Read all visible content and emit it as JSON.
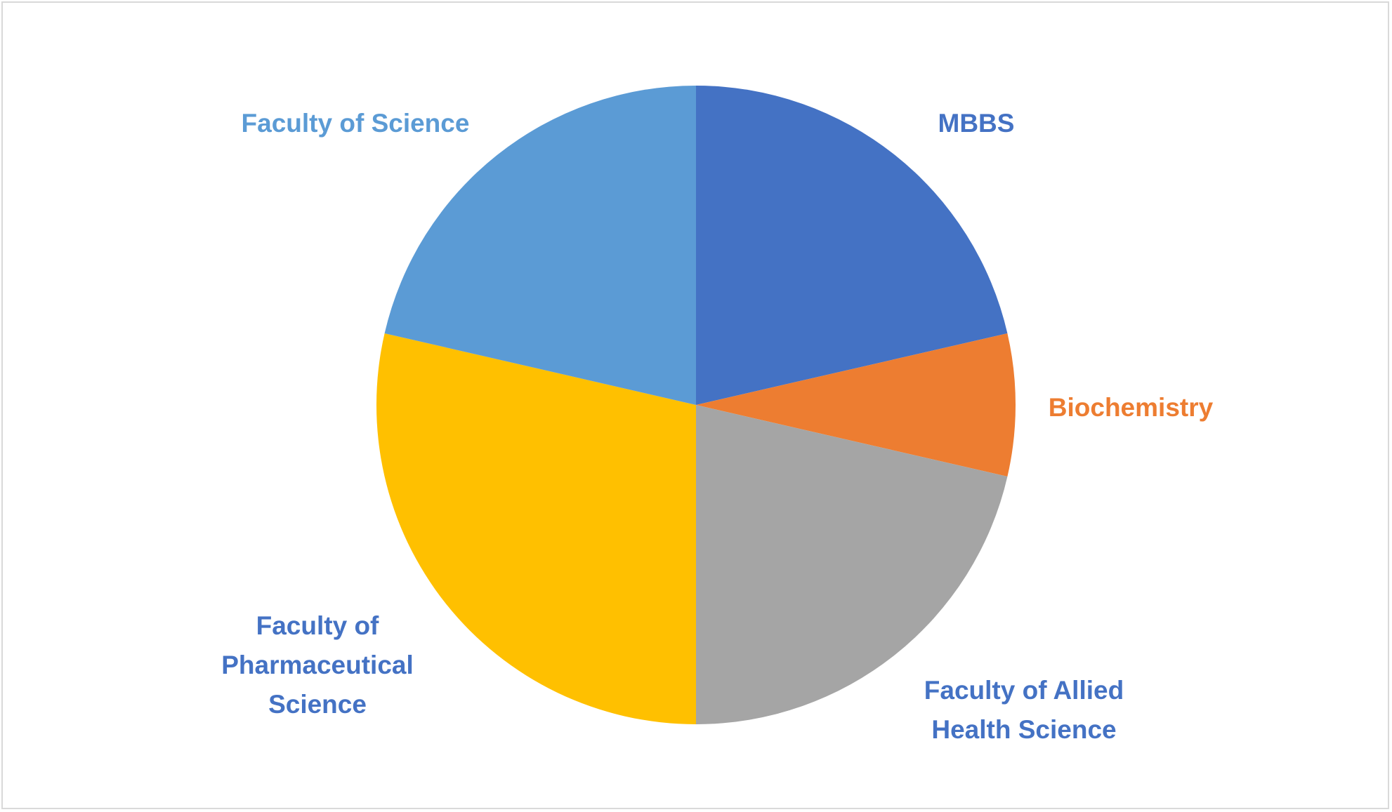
{
  "chart_data": {
    "type": "pie",
    "title": "",
    "start_angle_deg": 0,
    "direction": "clockwise",
    "slices": [
      {
        "label": "MBBS",
        "value": 21.4,
        "color": "#4472C4",
        "label_color": "#4472C4"
      },
      {
        "label": "Biochemistry",
        "value": 7.2,
        "color": "#ED7D31",
        "label_color": "#ED7D31"
      },
      {
        "label": "Faculty of Allied Health Science",
        "value": 21.4,
        "color": "#A5A5A5",
        "label_color": "#4472C4"
      },
      {
        "label": "Faculty of Pharmaceutical Science",
        "value": 28.6,
        "color": "#FFC000",
        "label_color": "#4472C4"
      },
      {
        "label": "Faculty of Science",
        "value": 21.4,
        "color": "#5B9BD5",
        "label_color": "#5B9BD5"
      }
    ],
    "legend": "none",
    "data_labels": "category names outside slices"
  }
}
